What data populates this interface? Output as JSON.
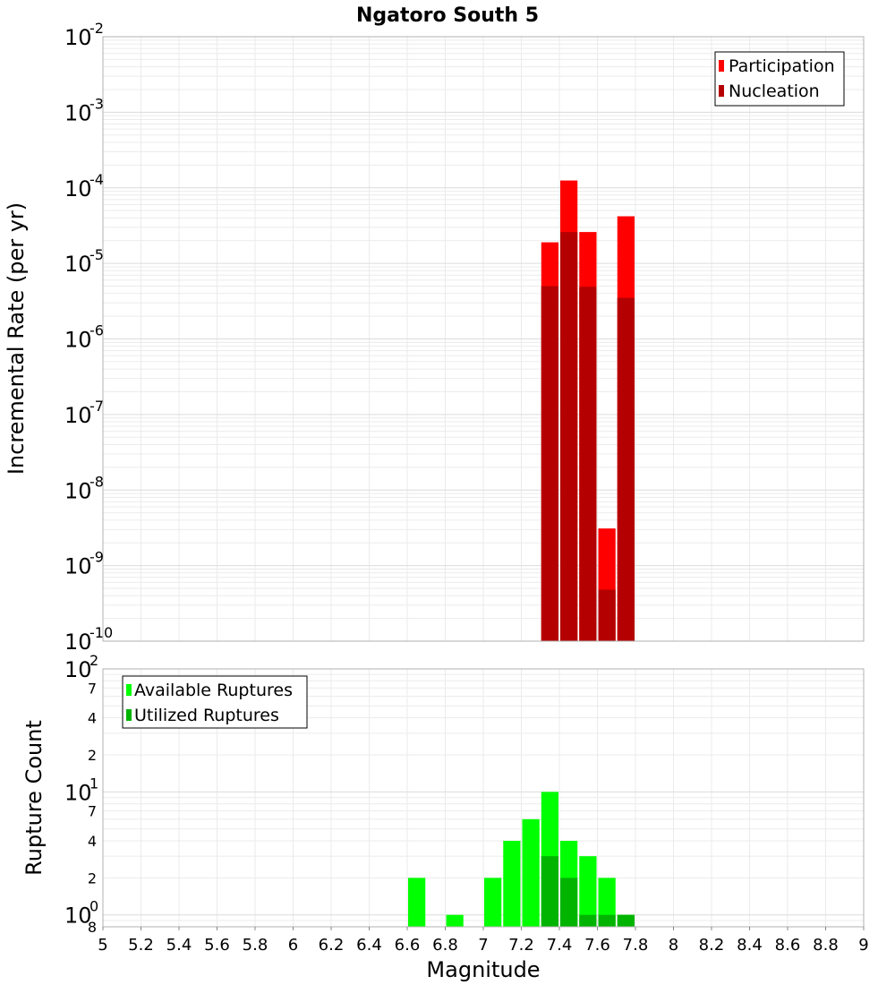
{
  "chart_data": [
    {
      "type": "bar",
      "title": "Ngatoro South 5",
      "ylabel": "Incremental Rate (per yr)",
      "xlabel": "",
      "yscale": "log",
      "ylim": [
        1e-10,
        0.01
      ],
      "xlim": [
        5,
        9
      ],
      "y_tick_bases": [
        "10",
        "10",
        "10",
        "10",
        "10",
        "10",
        "10",
        "10",
        "10"
      ],
      "y_tick_exponents": [
        "-10",
        "-9",
        "-8",
        "-7",
        "-6",
        "-5",
        "-4",
        "-3",
        "-2"
      ],
      "legend_position": "top-right",
      "bar_width": 0.1,
      "grid": true,
      "series": [
        {
          "name": "Participation",
          "color": "#ff0000",
          "x": [
            7.35,
            7.45,
            7.55,
            7.65,
            7.75
          ],
          "values": [
            1.9e-05,
            0.000125,
            2.6e-05,
            3.1e-09,
            4.2e-05
          ]
        },
        {
          "name": "Nucleation",
          "color": "#b40000",
          "x": [
            7.35,
            7.45,
            7.55,
            7.65,
            7.75
          ],
          "values": [
            5e-06,
            2.6e-05,
            4.9e-06,
            4.8e-10,
            3.5e-06
          ]
        }
      ]
    },
    {
      "type": "bar",
      "title": "",
      "ylabel": "Rupture Count",
      "xlabel": "Magnitude",
      "yscale": "log",
      "ylim": [
        0.8,
        100
      ],
      "xlim": [
        5,
        9
      ],
      "x_ticks": [
        "5",
        "5.2",
        "5.4",
        "5.6",
        "5.8",
        "6",
        "6.2",
        "6.4",
        "6.6",
        "6.8",
        "7",
        "7.2",
        "7.4",
        "7.6",
        "7.8",
        "8",
        "8.2",
        "8.4",
        "8.6",
        "8.8",
        "9"
      ],
      "y_tick_bases": [
        "10",
        "10",
        "10"
      ],
      "y_tick_exponents": [
        "0",
        "1",
        "2"
      ],
      "y_minor_tick_labels": [
        "8",
        "2",
        "4",
        "7",
        "2",
        "4",
        "7"
      ],
      "legend_position": "top-left",
      "bar_width": 0.1,
      "grid": true,
      "series": [
        {
          "name": "Available Ruptures",
          "color": "#00ff00",
          "x": [
            6.65,
            6.85,
            7.05,
            7.15,
            7.25,
            7.35,
            7.45,
            7.55,
            7.65,
            7.75
          ],
          "values": [
            2,
            1,
            2,
            4,
            6,
            10,
            4,
            3,
            2,
            1
          ]
        },
        {
          "name": "Utilized Ruptures",
          "color": "#00b400",
          "x": [
            7.35,
            7.45,
            7.55,
            7.65,
            7.75
          ],
          "values": [
            3,
            2,
            1,
            1,
            1
          ]
        }
      ]
    }
  ]
}
